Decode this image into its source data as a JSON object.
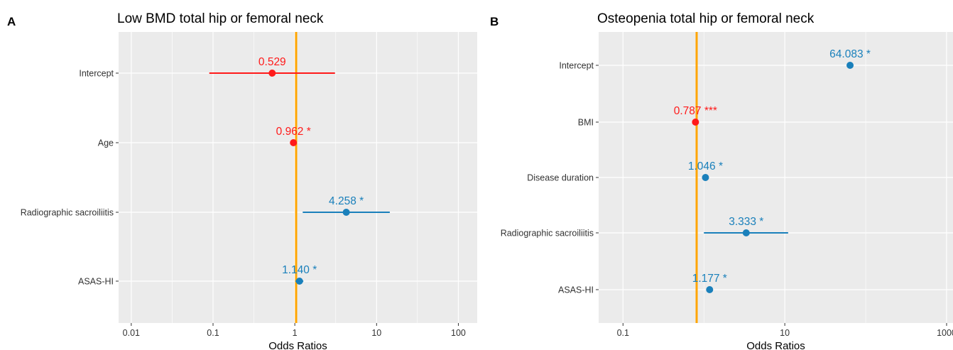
{
  "colors": {
    "panel_bg": "#ebebeb",
    "grid": "#ffffff",
    "ref_line": "#ffa500",
    "negative": "#ff1a1a",
    "positive": "#1a80bb"
  },
  "chart_data": [
    {
      "type": "scatter",
      "panel": "A",
      "title": "Low BMD total hip or femoral neck",
      "xlabel": "Odds Ratios",
      "ylabel": "",
      "x_scale": "log",
      "xlim": [
        0.007,
        170
      ],
      "x_ticks": [
        0.01,
        0.1,
        1,
        10,
        100
      ],
      "x_tick_labels": [
        "0.01",
        "0.1",
        "1",
        "10",
        "100"
      ],
      "reference_line": 1,
      "grid": true,
      "categories": [
        "Intercept",
        "Age",
        "Radiographic sacroiliitis",
        "ASAS-HI"
      ],
      "points": [
        {
          "term": "Intercept",
          "estimate": 0.529,
          "ci_low": 0.09,
          "ci_high": 3.1,
          "label": "0.529",
          "direction": "negative"
        },
        {
          "term": "Age",
          "estimate": 0.962,
          "ci_low": 0.94,
          "ci_high": 0.99,
          "label": "0.962 *",
          "direction": "negative"
        },
        {
          "term": "Radiographic sacroiliitis",
          "estimate": 4.258,
          "ci_low": 1.25,
          "ci_high": 14.5,
          "label": "4.258 *",
          "direction": "positive"
        },
        {
          "term": "ASAS-HI",
          "estimate": 1.14,
          "ci_low": 1.02,
          "ci_high": 1.27,
          "label": "1.140 *",
          "direction": "positive"
        }
      ]
    },
    {
      "type": "scatter",
      "panel": "B",
      "title": "Osteopenia total hip or femoral neck",
      "xlabel": "Odds Ratios",
      "ylabel": "",
      "x_scale": "log",
      "xlim": [
        0.05,
        1200
      ],
      "x_ticks": [
        0.1,
        10,
        1000
      ],
      "x_tick_labels": [
        "0.1",
        "10",
        "1000"
      ],
      "reference_line": 1,
      "grid": true,
      "categories": [
        "Intercept",
        "BMI",
        "Disease duration",
        "Radiographic sacroiliitis",
        "ASAS-HI"
      ],
      "points": [
        {
          "term": "Intercept",
          "estimate": 64.083,
          "ci_low": 64.083,
          "ci_high": 64.083,
          "label": "64.083 *",
          "direction": "positive"
        },
        {
          "term": "BMI",
          "estimate": 0.787,
          "ci_low": 0.76,
          "ci_high": 0.82,
          "label": "0.787 ***",
          "direction": "negative"
        },
        {
          "term": "Disease duration",
          "estimate": 1.046,
          "ci_low": 1.01,
          "ci_high": 1.08,
          "label": "1.046 *",
          "direction": "positive"
        },
        {
          "term": "Radiographic sacroiliitis",
          "estimate": 3.333,
          "ci_low": 1.0,
          "ci_high": 11.0,
          "label": "3.333 *",
          "direction": "positive"
        },
        {
          "term": "ASAS-HI",
          "estimate": 1.177,
          "ci_low": 1.1,
          "ci_high": 1.25,
          "label": "1.177 *",
          "direction": "positive"
        }
      ]
    }
  ]
}
